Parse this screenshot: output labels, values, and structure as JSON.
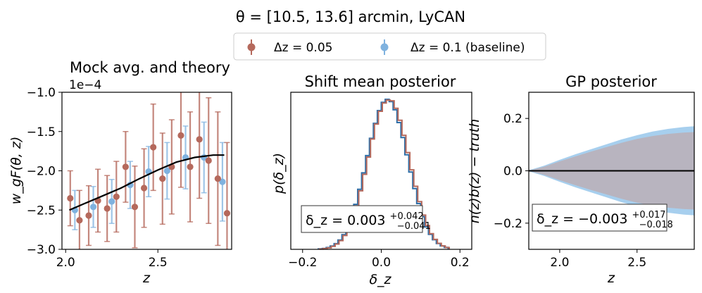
{
  "figure": {
    "title": "θ = [10.5, 13.6] arcmin, LyCAN",
    "legend": [
      {
        "label": "Δz = 0.05",
        "color": "#b5695c"
      },
      {
        "label": "Δz = 0.1 (baseline)",
        "color": "#7fb2df"
      }
    ]
  },
  "colors": {
    "brown": "#b5695c",
    "blue": "#7fb2df",
    "steel": "#2e6fa8",
    "band_grey": "#b8b4bf",
    "band_blue": "#a7cfee"
  },
  "chart_data": [
    {
      "type": "scatter",
      "title": "Mock avg. and theory",
      "xlabel": "z",
      "ylabel": "w_gF(θ, z)",
      "scale_label": "1e−4",
      "xlim": [
        1.98,
        2.9
      ],
      "ylim": [
        -3.0,
        -1.0
      ],
      "xticks": [
        2.0,
        2.5
      ],
      "xtick_labels": [
        "2.0",
        "2.5"
      ],
      "yticks": [
        -3.0,
        -2.5,
        -2.0,
        -1.5,
        -1.0
      ],
      "ytick_labels": [
        "−3.0",
        "−2.5",
        "−2.0",
        "−1.5",
        "−1.0"
      ],
      "series": [
        {
          "name": "Δz = 0.05",
          "x": [
            2.025,
            2.075,
            2.125,
            2.175,
            2.225,
            2.275,
            2.325,
            2.375,
            2.425,
            2.475,
            2.525,
            2.575,
            2.625,
            2.675,
            2.725,
            2.775,
            2.825,
            2.875
          ],
          "y": [
            -2.35,
            -2.63,
            -2.57,
            -2.38,
            -2.48,
            -2.33,
            -1.95,
            -2.46,
            -2.22,
            -1.7,
            -2.1,
            -1.95,
            -1.55,
            -1.95,
            -1.6,
            -1.87,
            -2.1,
            -2.54
          ],
          "yerr": [
            0.35,
            0.38,
            0.38,
            0.4,
            0.42,
            0.45,
            0.45,
            0.52,
            0.5,
            0.55,
            0.58,
            0.6,
            0.66,
            0.7,
            0.75,
            0.8,
            0.85,
            0.9
          ]
        },
        {
          "name": "Δz = 0.1 (baseline)",
          "x": [
            2.05,
            2.15,
            2.25,
            2.35,
            2.45,
            2.55,
            2.65,
            2.75,
            2.85
          ],
          "y": [
            -2.5,
            -2.46,
            -2.39,
            -2.18,
            -2.01,
            -2.0,
            -1.83,
            -1.83,
            -2.14
          ],
          "yerr": [
            0.25,
            0.26,
            0.28,
            0.3,
            0.32,
            0.36,
            0.4,
            0.45,
            0.5
          ]
        },
        {
          "name": "theory",
          "x": [
            2.02,
            2.1,
            2.2,
            2.3,
            2.4,
            2.5,
            2.6,
            2.7,
            2.8,
            2.86
          ],
          "y": [
            -2.5,
            -2.42,
            -2.32,
            -2.22,
            -2.1,
            -1.99,
            -1.89,
            -1.83,
            -1.8,
            -1.8
          ]
        }
      ]
    },
    {
      "type": "bar",
      "subtype": "step-histogram",
      "title": "Shift mean posterior",
      "xlabel": "δ_z",
      "ylabel": "p(δ_z)",
      "xlim": [
        -0.23,
        0.23
      ],
      "xticks": [
        -0.2,
        0.0,
        0.2
      ],
      "xtick_labels": [
        "−0.2",
        "0.0",
        "0.2"
      ],
      "bin_start": -0.16,
      "bin_width": 0.01,
      "series": [
        {
          "name": "Δz = 0.1 (baseline)",
          "color": "#2e6fa8",
          "values": [
            0.003,
            0.006,
            0.012,
            0.022,
            0.038,
            0.062,
            0.098,
            0.148,
            0.215,
            0.3,
            0.4,
            0.51,
            0.625,
            0.74,
            0.84,
            0.925,
            0.98,
            1.0,
            0.985,
            0.93,
            0.845,
            0.745,
            0.63,
            0.515,
            0.405,
            0.305,
            0.218,
            0.15,
            0.1,
            0.064,
            0.039,
            0.023,
            0.013
          ]
        },
        {
          "name": "Δz = 0.05",
          "color": "#b5695c",
          "values": [
            0.002,
            0.005,
            0.01,
            0.02,
            0.035,
            0.058,
            0.092,
            0.14,
            0.205,
            0.29,
            0.39,
            0.5,
            0.615,
            0.735,
            0.835,
            0.92,
            0.975,
            0.995,
            0.99,
            0.94,
            0.86,
            0.76,
            0.645,
            0.53,
            0.42,
            0.318,
            0.228,
            0.158,
            0.104,
            0.066,
            0.04,
            0.023,
            0.012
          ]
        }
      ],
      "annotation": {
        "main": "δ_z = 0.003",
        "sup": "+0.042",
        "sub": "−0.041"
      }
    },
    {
      "type": "area",
      "title": "GP posterior",
      "xlabel": "z",
      "ylabel": "n(z)b(z) − truth",
      "xlim": [
        1.8,
        2.87
      ],
      "ylim": [
        -0.3,
        0.3
      ],
      "xticks": [
        2.0,
        2.5
      ],
      "xtick_labels": [
        "2.0",
        "2.5"
      ],
      "yticks": [
        -0.2,
        0.0,
        0.2
      ],
      "ytick_labels": [
        "−0.2",
        "0.0",
        "0.2"
      ],
      "band_x": [
        1.8,
        1.9,
        2.0,
        2.1,
        2.2,
        2.3,
        2.4,
        2.5,
        2.6,
        2.7,
        2.8,
        2.87
      ],
      "inner_half_width": [
        0.0,
        0.016,
        0.036,
        0.055,
        0.073,
        0.09,
        0.107,
        0.122,
        0.133,
        0.141,
        0.146,
        0.148
      ],
      "outer_half_width": [
        0.002,
        0.02,
        0.042,
        0.063,
        0.082,
        0.101,
        0.12,
        0.136,
        0.15,
        0.16,
        0.167,
        0.17
      ],
      "line_y": 0.0,
      "annotation": {
        "main": "δ_z = −0.003",
        "sup": "+0.017",
        "sub": "−0.018"
      }
    }
  ]
}
